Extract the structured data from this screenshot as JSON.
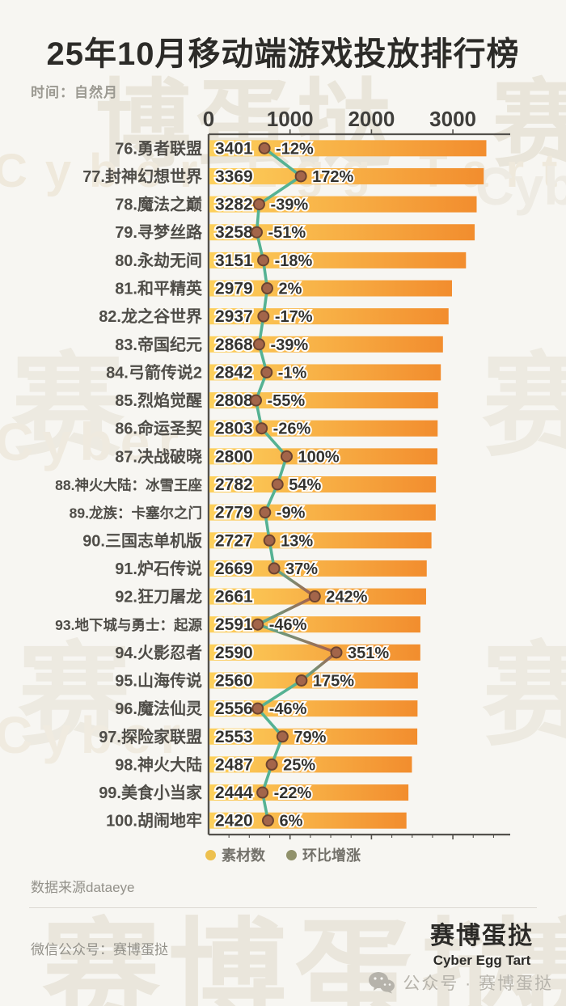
{
  "header": {
    "title": "25年10月移动端游戏投放排行榜",
    "meta": "时间：自然月"
  },
  "chart_data": {
    "type": "bar",
    "orientation": "horizontal-bars-with-trend-line",
    "title": "25年10月移动端游戏投放排行榜",
    "x_axis": {
      "ticks": [
        "0",
        "1000",
        "2000",
        "3000"
      ],
      "tick_values": [
        0,
        1000,
        2000,
        3000
      ],
      "max_units": 3690
    },
    "legend": [
      {
        "name": "素材数",
        "color": "#edc04e"
      },
      {
        "name": "环比增涨",
        "color": "#91926b"
      }
    ],
    "bar_colors": {
      "left": "#fdd15c",
      "right": "#f28d2e"
    },
    "line_colors": {
      "normal": "#55b293",
      "spike": "#ad5a46",
      "spike_threshold": 200
    },
    "dot_color": {
      "fill": "#a3654a",
      "stroke": "#6d4431"
    },
    "rows": [
      {
        "label": "76.勇者联盟",
        "value": 3401,
        "pct": -12
      },
      {
        "label": "77.封神幻想世界",
        "value": 3369,
        "pct": 172
      },
      {
        "label": "78.魔法之巅",
        "value": 3282,
        "pct": -39
      },
      {
        "label": "79.寻梦丝路",
        "value": 3258,
        "pct": -51
      },
      {
        "label": "80.永劫无间",
        "value": 3151,
        "pct": -18
      },
      {
        "label": "81.和平精英",
        "value": 2979,
        "pct": 2
      },
      {
        "label": "82.龙之谷世界",
        "value": 2937,
        "pct": -17
      },
      {
        "label": "83.帝国纪元",
        "value": 2868,
        "pct": -39
      },
      {
        "label": "84.弓箭传说2",
        "value": 2842,
        "pct": -1
      },
      {
        "label": "85.烈焰觉醒",
        "value": 2808,
        "pct": -55
      },
      {
        "label": "86.命运圣契",
        "value": 2803,
        "pct": -26
      },
      {
        "label": "87.决战破晓",
        "value": 2800,
        "pct": 100
      },
      {
        "label": "88.神火大陆：冰雪王座",
        "value": 2782,
        "pct": 54
      },
      {
        "label": "89.龙族：卡塞尔之门",
        "value": 2779,
        "pct": -9
      },
      {
        "label": "90.三国志单机版",
        "value": 2727,
        "pct": 13
      },
      {
        "label": "91.炉石传说",
        "value": 2669,
        "pct": 37
      },
      {
        "label": "92.狂刀屠龙",
        "value": 2661,
        "pct": 242
      },
      {
        "label": "93.地下城与勇士：起源",
        "value": 2591,
        "pct": -46
      },
      {
        "label": "94.火影忍者",
        "value": 2590,
        "pct": 351
      },
      {
        "label": "95.山海传说",
        "value": 2560,
        "pct": 175
      },
      {
        "label": "96.魔法仙灵",
        "value": 2556,
        "pct": -46
      },
      {
        "label": "97.探险家联盟",
        "value": 2553,
        "pct": 79
      },
      {
        "label": "98.神火大陆",
        "value": 2487,
        "pct": 25
      },
      {
        "label": "99.美食小当家",
        "value": 2444,
        "pct": -22
      },
      {
        "label": "100.胡闹地牢",
        "value": 2420,
        "pct": 6
      }
    ]
  },
  "footer": {
    "source": "数据来源dataeye",
    "wechat_line": "微信公众号：赛博蛋挞",
    "brand_cn": "赛博蛋挞",
    "brand_en": "Cyber Egg Tart",
    "badge": "公众号 · 赛博蛋挞"
  },
  "watermarks": {
    "cn_top": "博蛋挞",
    "cn_char": "赛",
    "cn_full": "赛博蛋挞",
    "en_full": "Cyber Egg Tart",
    "en_short": "Cyber",
    "en_frag": "Cybe"
  }
}
